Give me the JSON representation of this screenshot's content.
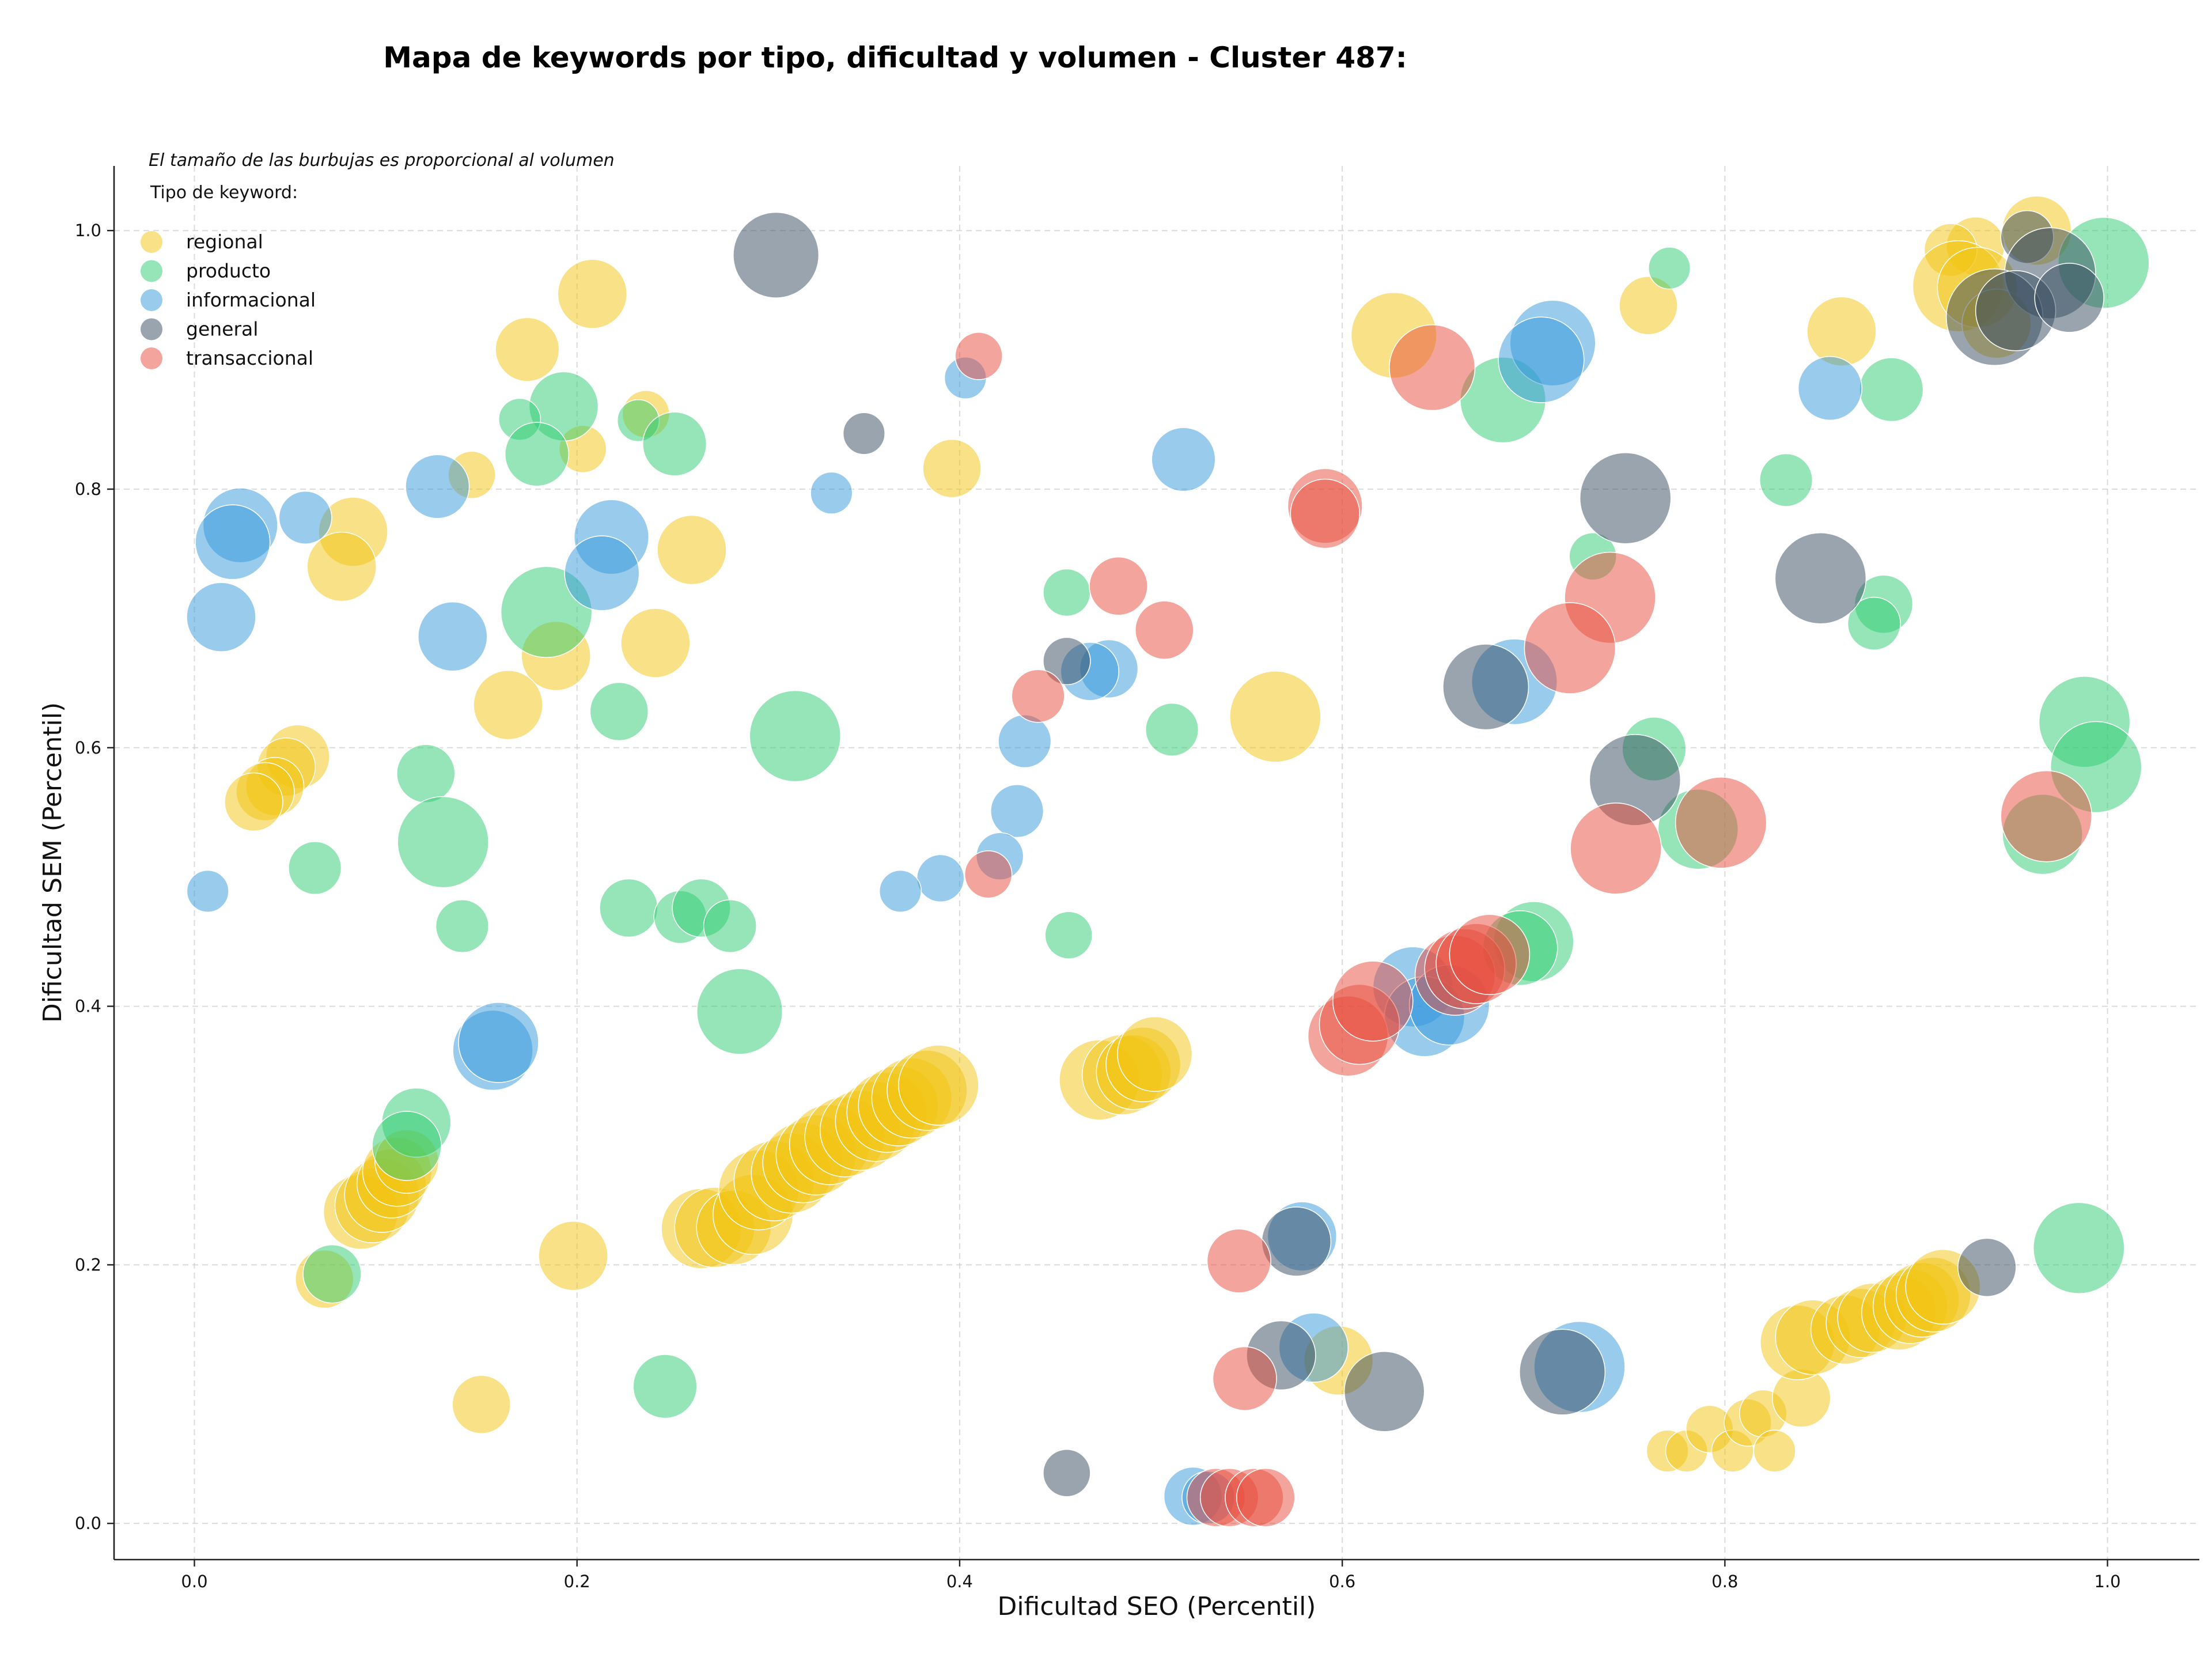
{
  "chart_data": {
    "type": "scatter",
    "title": "Mapa de keywords por tipo, dificultad y volumen - Cluster 487:",
    "xlabel": "Dificultad SEO (Percentil)",
    "ylabel": "Dificultad SEM (Percentil)",
    "note": "El tamaño de las burbujas es proporcional al volumen",
    "legend_title": "Tipo de keyword:",
    "legend_position": "upper-left",
    "grid": true,
    "xlim": [
      -0.042,
      1.048
    ],
    "ylim": [
      -0.028,
      1.05
    ],
    "xticks": [
      "0.0",
      "0.2",
      "0.4",
      "0.6",
      "0.8",
      "1.0"
    ],
    "yticks": [
      "0.0",
      "0.2",
      "0.4",
      "0.6",
      "0.8",
      "1.0"
    ],
    "size_unit": "relative volume (1 = smallest bubble, 10 = largest)",
    "series": [
      {
        "name": "regional",
        "color": "#f1c40f",
        "points": [
          [
            0.208,
            0.951,
            5
          ],
          [
            0.174,
            0.908,
            4.5
          ],
          [
            0.236,
            0.858,
            3
          ],
          [
            0.145,
            0.811,
            3
          ],
          [
            0.203,
            0.831,
            3
          ],
          [
            0.083,
            0.767,
            5
          ],
          [
            0.077,
            0.74,
            5
          ],
          [
            0.26,
            0.753,
            5
          ],
          [
            0.241,
            0.681,
            5
          ],
          [
            0.189,
            0.671,
            5
          ],
          [
            0.164,
            0.633,
            5
          ],
          [
            0.054,
            0.593,
            4.5
          ],
          [
            0.048,
            0.585,
            4
          ],
          [
            0.042,
            0.57,
            4
          ],
          [
            0.037,
            0.566,
            4
          ],
          [
            0.031,
            0.558,
            4
          ],
          [
            0.396,
            0.816,
            4
          ],
          [
            0.565,
            0.624,
            7
          ],
          [
            0.627,
            0.919,
            6.5
          ],
          [
            0.861,
            0.922,
            5
          ],
          [
            0.76,
            0.942,
            4
          ],
          [
            0.963,
            1.0,
            5
          ],
          [
            0.931,
            0.988,
            4
          ],
          [
            0.918,
            0.985,
            3.5
          ],
          [
            0.922,
            0.957,
            7
          ],
          [
            0.932,
            0.956,
            6
          ],
          [
            0.942,
            0.928,
            5
          ],
          [
            0.087,
            0.241,
            5.5
          ],
          [
            0.093,
            0.246,
            5.5
          ],
          [
            0.098,
            0.254,
            5.5
          ],
          [
            0.103,
            0.263,
            5
          ],
          [
            0.106,
            0.272,
            5
          ],
          [
            0.111,
            0.28,
            4.5
          ],
          [
            0.068,
            0.189,
            4
          ],
          [
            0.198,
            0.207,
            5
          ],
          [
            0.15,
            0.092,
            4
          ],
          [
            0.265,
            0.228,
            6
          ],
          [
            0.272,
            0.229,
            6
          ],
          [
            0.282,
            0.229,
            5.5
          ],
          [
            0.292,
            0.239,
            6
          ],
          [
            0.295,
            0.258,
            6
          ],
          [
            0.303,
            0.265,
            6
          ],
          [
            0.312,
            0.271,
            6
          ],
          [
            0.318,
            0.279,
            6
          ],
          [
            0.325,
            0.285,
            6
          ],
          [
            0.332,
            0.293,
            6
          ],
          [
            0.34,
            0.299,
            6
          ],
          [
            0.348,
            0.304,
            6
          ],
          [
            0.356,
            0.311,
            6
          ],
          [
            0.362,
            0.318,
            6
          ],
          [
            0.368,
            0.323,
            6
          ],
          [
            0.375,
            0.329,
            6
          ],
          [
            0.383,
            0.335,
            6
          ],
          [
            0.389,
            0.339,
            6
          ],
          [
            0.473,
            0.343,
            6
          ],
          [
            0.485,
            0.347,
            6
          ],
          [
            0.491,
            0.349,
            5.5
          ],
          [
            0.496,
            0.355,
            5.5
          ],
          [
            0.502,
            0.363,
            5.5
          ],
          [
            0.598,
            0.126,
            5
          ],
          [
            0.77,
            0.056,
            2.5
          ],
          [
            0.78,
            0.056,
            2.5
          ],
          [
            0.792,
            0.073,
            3
          ],
          [
            0.804,
            0.056,
            2.5
          ],
          [
            0.812,
            0.078,
            3
          ],
          [
            0.82,
            0.085,
            3
          ],
          [
            0.826,
            0.056,
            2.5
          ],
          [
            0.84,
            0.097,
            4
          ],
          [
            0.838,
            0.14,
            5.5
          ],
          [
            0.846,
            0.144,
            5.5
          ],
          [
            0.863,
            0.15,
            5
          ],
          [
            0.871,
            0.155,
            5
          ],
          [
            0.877,
            0.159,
            5
          ],
          [
            0.891,
            0.163,
            5.5
          ],
          [
            0.897,
            0.168,
            5.5
          ],
          [
            0.903,
            0.173,
            5.5
          ],
          [
            0.909,
            0.177,
            5.5
          ],
          [
            0.914,
            0.183,
            5.5
          ]
        ]
      },
      {
        "name": "producto",
        "color": "#2ecc71",
        "points": [
          [
            0.193,
            0.864,
            5
          ],
          [
            0.17,
            0.854,
            2.5
          ],
          [
            0.179,
            0.827,
            4.5
          ],
          [
            0.232,
            0.853,
            2.5
          ],
          [
            0.251,
            0.835,
            4.5
          ],
          [
            0.184,
            0.705,
            7
          ],
          [
            0.222,
            0.628,
            4
          ],
          [
            0.314,
            0.609,
            7
          ],
          [
            0.121,
            0.58,
            4
          ],
          [
            0.063,
            0.507,
            3.5
          ],
          [
            0.13,
            0.527,
            7
          ],
          [
            0.14,
            0.462,
            3.5
          ],
          [
            0.227,
            0.476,
            4
          ],
          [
            0.254,
            0.469,
            3.5
          ],
          [
            0.265,
            0.476,
            4
          ],
          [
            0.28,
            0.462,
            3.5
          ],
          [
            0.285,
            0.396,
            6.5
          ],
          [
            0.116,
            0.31,
            5
          ],
          [
            0.111,
            0.292,
            5
          ],
          [
            0.072,
            0.193,
            4
          ],
          [
            0.246,
            0.106,
            4.5
          ],
          [
            0.456,
            0.72,
            3
          ],
          [
            0.511,
            0.614,
            3.5
          ],
          [
            0.457,
            0.455,
            3
          ],
          [
            0.684,
            0.869,
            6.5
          ],
          [
            0.771,
            0.971,
            2.5
          ],
          [
            0.832,
            0.807,
            3.5
          ],
          [
            0.887,
            0.877,
            4.5
          ],
          [
            0.883,
            0.711,
            4
          ],
          [
            0.878,
            0.696,
            3.5
          ],
          [
            0.731,
            0.748,
            3
          ],
          [
            0.763,
            0.599,
            4.5
          ],
          [
            0.786,
            0.537,
            6
          ],
          [
            0.7,
            0.45,
            6
          ],
          [
            0.693,
            0.445,
            5.5
          ],
          [
            0.998,
            0.975,
            7
          ],
          [
            0.988,
            0.62,
            7
          ],
          [
            0.994,
            0.585,
            7
          ],
          [
            0.966,
            0.533,
            6
          ],
          [
            0.985,
            0.213,
            7
          ]
        ]
      },
      {
        "name": "informacional",
        "color": "#3498db",
        "points": [
          [
            0.024,
            0.772,
            5.5
          ],
          [
            0.02,
            0.759,
            5.5
          ],
          [
            0.058,
            0.778,
            3.5
          ],
          [
            0.127,
            0.802,
            4.5
          ],
          [
            0.218,
            0.763,
            5.5
          ],
          [
            0.213,
            0.735,
            5.5
          ],
          [
            0.014,
            0.701,
            5
          ],
          [
            0.135,
            0.686,
            5
          ],
          [
            0.007,
            0.489,
            2.5
          ],
          [
            0.333,
            0.797,
            2.5
          ],
          [
            0.403,
            0.886,
            2.5
          ],
          [
            0.517,
            0.823,
            4.5
          ],
          [
            0.478,
            0.661,
            4
          ],
          [
            0.468,
            0.659,
            4
          ],
          [
            0.434,
            0.605,
            3.5
          ],
          [
            0.43,
            0.551,
            3.5
          ],
          [
            0.421,
            0.516,
            3
          ],
          [
            0.39,
            0.499,
            3
          ],
          [
            0.369,
            0.489,
            2.5
          ],
          [
            0.156,
            0.366,
            6
          ],
          [
            0.159,
            0.372,
            6
          ],
          [
            0.71,
            0.913,
            6.5
          ],
          [
            0.704,
            0.9,
            6.5
          ],
          [
            0.855,
            0.878,
            4.5
          ],
          [
            0.69,
            0.651,
            6.5
          ],
          [
            0.637,
            0.415,
            6
          ],
          [
            0.643,
            0.392,
            6
          ],
          [
            0.656,
            0.401,
            6
          ],
          [
            0.579,
            0.222,
            5
          ],
          [
            0.585,
            0.136,
            5
          ],
          [
            0.724,
            0.121,
            7
          ],
          [
            0.522,
            0.021,
            4
          ],
          [
            0.53,
            0.02,
            3.5
          ]
        ]
      },
      {
        "name": "general",
        "color": "#34495e",
        "points": [
          [
            0.304,
            0.981,
            6.5
          ],
          [
            0.35,
            0.843,
            2.5
          ],
          [
            0.456,
            0.667,
            3
          ],
          [
            0.675,
            0.647,
            6.5
          ],
          [
            0.748,
            0.793,
            7
          ],
          [
            0.85,
            0.731,
            7
          ],
          [
            0.753,
            0.575,
            7
          ],
          [
            0.576,
            0.218,
            5
          ],
          [
            0.568,
            0.13,
            5
          ],
          [
            0.622,
            0.102,
            6
          ],
          [
            0.715,
            0.117,
            6.5
          ],
          [
            0.937,
            0.198,
            4
          ],
          [
            0.456,
            0.039,
            3
          ],
          [
            0.958,
            0.995,
            3.5
          ],
          [
            0.97,
            0.967,
            7
          ],
          [
            0.941,
            0.933,
            7.5
          ],
          [
            0.952,
            0.938,
            6
          ],
          [
            0.98,
            0.948,
            5
          ]
        ]
      },
      {
        "name": "transaccional",
        "color": "#e74c3c",
        "points": [
          [
            0.41,
            0.903,
            3
          ],
          [
            0.591,
            0.787,
            5.5
          ],
          [
            0.591,
            0.781,
            5
          ],
          [
            0.483,
            0.725,
            4
          ],
          [
            0.507,
            0.691,
            4
          ],
          [
            0.441,
            0.64,
            3.5
          ],
          [
            0.415,
            0.502,
            3
          ],
          [
            0.647,
            0.894,
            6.5
          ],
          [
            0.74,
            0.716,
            7
          ],
          [
            0.719,
            0.677,
            7
          ],
          [
            0.743,
            0.522,
            7
          ],
          [
            0.798,
            0.542,
            7
          ],
          [
            0.968,
            0.547,
            7
          ],
          [
            0.603,
            0.377,
            6
          ],
          [
            0.609,
            0.386,
            6
          ],
          [
            0.616,
            0.404,
            6
          ],
          [
            0.659,
            0.424,
            6
          ],
          [
            0.664,
            0.429,
            6
          ],
          [
            0.67,
            0.433,
            6
          ],
          [
            0.677,
            0.44,
            6
          ],
          [
            0.546,
            0.203,
            4.5
          ],
          [
            0.549,
            0.112,
            4.5
          ],
          [
            0.534,
            0.02,
            4
          ],
          [
            0.541,
            0.02,
            4
          ],
          [
            0.554,
            0.02,
            4
          ],
          [
            0.56,
            0.02,
            4
          ]
        ]
      }
    ]
  }
}
